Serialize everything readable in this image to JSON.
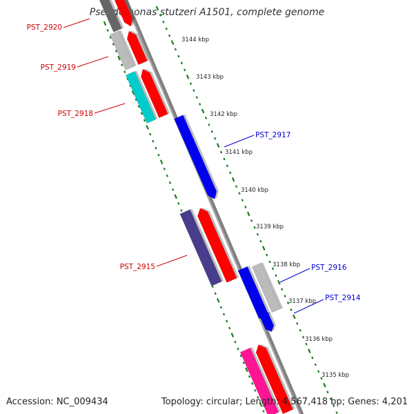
{
  "title": "Pseudomonas stutzeri A1501, complete genome",
  "footer": {
    "accession": "Accession: NC_009434",
    "summary": "Topology: circular; Length: 4,567,418 bp; Genes: 4,201"
  },
  "colors": {
    "backbone": "#808080",
    "tick_ruler": "#1a7a1a",
    "label_forward": "#cc0000",
    "label_reverse": "#0000cc"
  },
  "scale_ticks": [
    {
      "label": "3144 kbp"
    },
    {
      "label": "3143 kbp"
    },
    {
      "label": "3142 kbp"
    },
    {
      "label": "3141 kbp"
    },
    {
      "label": "3140 kbp"
    },
    {
      "label": "3139 kbp"
    },
    {
      "label": "3138 kbp"
    },
    {
      "label": "3137 kbp"
    },
    {
      "label": "3136 kbp"
    },
    {
      "label": "3135 kbp"
    }
  ],
  "gene_labels": [
    {
      "id": "PST_2920",
      "strand": "outer"
    },
    {
      "id": "PST_2919",
      "strand": "outer"
    },
    {
      "id": "PST_2918",
      "strand": "outer"
    },
    {
      "id": "PST_2917",
      "strand": "inner"
    },
    {
      "id": "PST_2915",
      "strand": "outer"
    },
    {
      "id": "PST_2916",
      "strand": "inner"
    },
    {
      "id": "PST_2914",
      "strand": "inner"
    }
  ],
  "features": [
    {
      "name": "feature-dark-gray",
      "color": "#666666"
    },
    {
      "name": "feature-red",
      "color": "#ff0000"
    },
    {
      "name": "feature-light-gray",
      "color": "#bbbbbb"
    },
    {
      "name": "feature-cyan",
      "color": "#00cccc"
    },
    {
      "name": "feature-blue",
      "color": "#0000ee"
    },
    {
      "name": "feature-slate-blue",
      "color": "#483d8b"
    },
    {
      "name": "feature-pink",
      "color": "#ff1493"
    }
  ]
}
